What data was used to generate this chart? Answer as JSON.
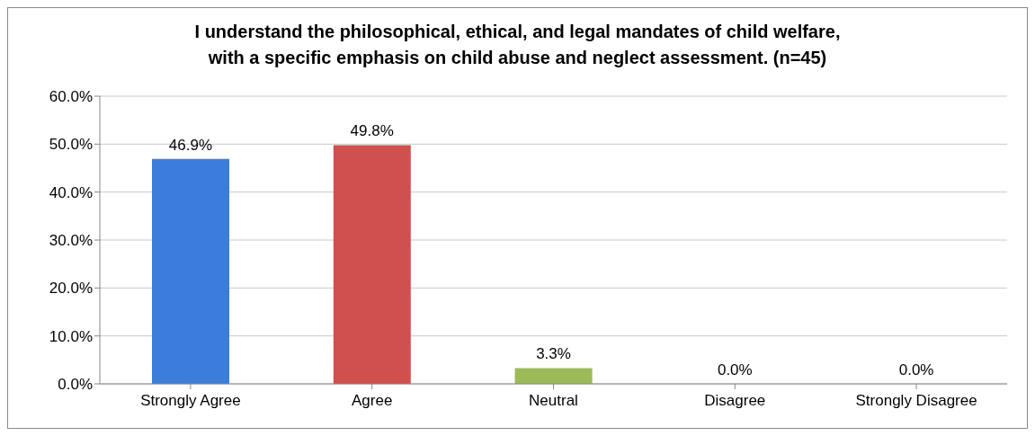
{
  "chart_data": {
    "type": "bar",
    "title": "I understand the philosophical, ethical, and legal mandates of child welfare,\nwith a specific emphasis on child abuse and neglect assessment. (n=45)",
    "categories": [
      "Strongly Agree",
      "Agree",
      "Neutral",
      "Disagree",
      "Strongly Disagree"
    ],
    "values": [
      46.9,
      49.8,
      3.3,
      0,
      0
    ],
    "colors": [
      "#3b7dd8",
      "#d0504d",
      "#9bbb59",
      "#8064a2",
      "#4bacc6"
    ],
    "value_labels": [
      "46.9%",
      "49.8%",
      "3.3%",
      "0.0%",
      "0.0%"
    ],
    "ylim": [
      0,
      60
    ],
    "yticks": [
      {
        "value": 0,
        "label": "0.0%"
      },
      {
        "value": 10,
        "label": "10.0%"
      },
      {
        "value": 20,
        "label": "20.0%"
      },
      {
        "value": 30,
        "label": "30.0%"
      },
      {
        "value": 40,
        "label": "40.0%"
      },
      {
        "value": 50,
        "label": "50.0%"
      },
      {
        "value": 60,
        "label": "60.0%"
      }
    ],
    "grid": "y",
    "legend": false
  }
}
